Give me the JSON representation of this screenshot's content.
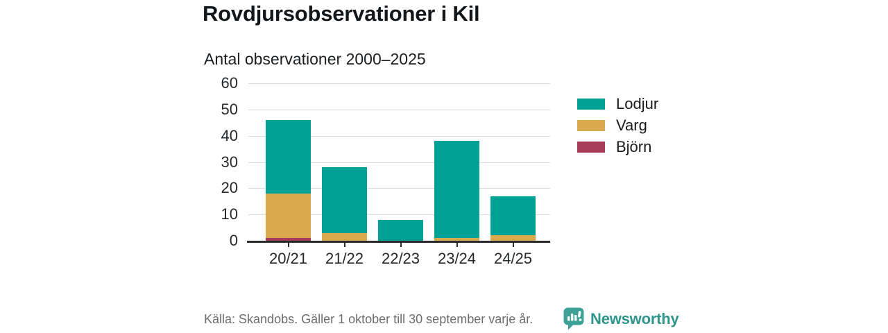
{
  "title": "Rovdjursobservationer i Kil",
  "subtitle": "Antal observationer 2000–2025",
  "chart_data": {
    "type": "bar",
    "stacked": true,
    "title": "Rovdjursobservationer i Kil",
    "subtitle": "Antal observationer 2000–2025",
    "categories": [
      "20/21",
      "21/22",
      "22/23",
      "23/24",
      "24/25"
    ],
    "series": [
      {
        "name": "Lodjur",
        "color": "#00a296",
        "values": [
          28,
          25,
          8,
          37,
          15
        ]
      },
      {
        "name": "Varg",
        "color": "#dcaa4e",
        "values": [
          17,
          3,
          0,
          1,
          2
        ]
      },
      {
        "name": "Björn",
        "color": "#a63c5a",
        "values": [
          1,
          0,
          0,
          0,
          0
        ]
      }
    ],
    "stack_order_bottom_to_top": [
      "Björn",
      "Varg",
      "Lodjur"
    ],
    "totals": [
      46,
      28,
      8,
      38,
      17
    ],
    "ylim": [
      0,
      60
    ],
    "yticks": [
      0,
      10,
      20,
      30,
      40,
      50,
      60
    ],
    "grid": true,
    "legend_position": "right",
    "xlabel": "",
    "ylabel": ""
  },
  "footer": {
    "source": "Källa: Skandobs. Gäller 1 oktober till 30 september varje år.",
    "brand": "Newsworthy"
  },
  "colors": {
    "lodjur": "#00a296",
    "varg": "#dcaa4e",
    "bjorn": "#a63c5a",
    "brand_bubble": "#3ea198",
    "brand_text": "#2e958c",
    "grid": "#dcdcdc",
    "axis": "#2b2b2b",
    "text": "#1c1f22",
    "muted_text": "#6d6d6d"
  }
}
